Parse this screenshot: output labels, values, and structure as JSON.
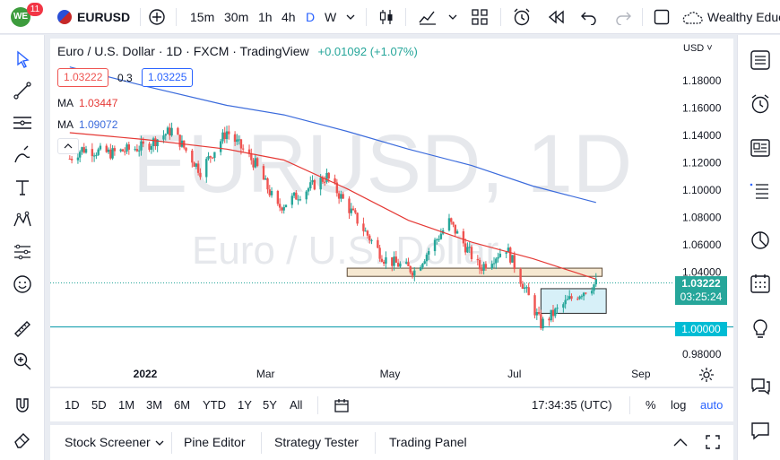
{
  "toolbar": {
    "badge_count": "11",
    "avatar_initials": "WE",
    "symbol": "EURUSD",
    "intervals": [
      "15m",
      "30m",
      "1h",
      "4h",
      "D",
      "W"
    ],
    "active_interval": "D",
    "account_label": "Wealthy Educ"
  },
  "legend": {
    "title": "Euro / U.S. Dollar · 1D · FXCM · TradingView",
    "change": "+0.01092 (+1.07%)",
    "bid": "1.03222",
    "spread": "0.3",
    "ask": "1.03225",
    "ma1_label": "MA",
    "ma1_value": "1.03447",
    "ma2_label": "MA",
    "ma2_value": "1.09072"
  },
  "watermark": {
    "big": "EURUSD, 1D",
    "small": "Euro / U.S. Dollar"
  },
  "price_axis": {
    "currency": "USD",
    "last_price": "1.03222",
    "countdown": "03:25:24",
    "level_label": "1.00000"
  },
  "colors": {
    "up": "#26a69a",
    "down": "#ef5350",
    "ma_fast": "#e53935",
    "ma_slow": "#3b6bdc",
    "support_line": "#0097a7",
    "resistance_zone": "#f5e4c9",
    "range_box": "#d3eef7"
  },
  "timeframes": {
    "ranges": [
      "1D",
      "5D",
      "1M",
      "3M",
      "6M",
      "YTD",
      "1Y",
      "5Y",
      "All"
    ],
    "clock": "17:34:35 (UTC)",
    "percent": "%",
    "log": "log",
    "auto": "auto"
  },
  "bottom": {
    "tabs": [
      "Stock Screener",
      "Pine Editor",
      "Strategy Tester",
      "Trading Panel"
    ]
  },
  "chart_data": {
    "type": "candlestick",
    "title": "Euro / U.S. Dollar · 1D · FXCM",
    "x_ticks": [
      "2022",
      "Mar",
      "May",
      "Jul",
      "Sep"
    ],
    "y_ticks": [
      "1.18000",
      "1.16000",
      "1.14000",
      "1.12000",
      "1.10000",
      "1.08000",
      "1.06000",
      "1.04000",
      "1.02000",
      "1.00000",
      "0.98000"
    ],
    "ylim": [
      0.973,
      1.195
    ],
    "anchors": [
      {
        "date": "2021-11-25",
        "close": 1.123
      },
      {
        "date": "2021-12-01",
        "close": 1.13
      },
      {
        "date": "2021-12-15",
        "close": 1.127
      },
      {
        "date": "2022-01-01",
        "close": 1.132
      },
      {
        "date": "2022-01-14",
        "close": 1.144
      },
      {
        "date": "2022-01-28",
        "close": 1.114
      },
      {
        "date": "2022-02-10",
        "close": 1.143
      },
      {
        "date": "2022-02-24",
        "close": 1.119
      },
      {
        "date": "2022-03-07",
        "close": 1.087
      },
      {
        "date": "2022-03-31",
        "close": 1.11
      },
      {
        "date": "2022-04-28",
        "close": 1.05
      },
      {
        "date": "2022-05-13",
        "close": 1.041
      },
      {
        "date": "2022-05-30",
        "close": 1.077
      },
      {
        "date": "2022-06-14",
        "close": 1.043
      },
      {
        "date": "2022-06-27",
        "close": 1.058
      },
      {
        "date": "2022-07-14",
        "close": 1.002
      },
      {
        "date": "2022-07-28",
        "close": 1.02
      },
      {
        "date": "2022-08-10",
        "close": 1.032
      }
    ],
    "ma_fast": [
      {
        "date": "2021-11-25",
        "value": 1.142
      },
      {
        "date": "2022-01-01",
        "value": 1.137
      },
      {
        "date": "2022-02-10",
        "value": 1.13
      },
      {
        "date": "2022-03-10",
        "value": 1.122
      },
      {
        "date": "2022-04-10",
        "value": 1.101
      },
      {
        "date": "2022-05-10",
        "value": 1.078
      },
      {
        "date": "2022-06-10",
        "value": 1.062
      },
      {
        "date": "2022-07-10",
        "value": 1.05
      },
      {
        "date": "2022-08-10",
        "value": 1.035
      }
    ],
    "ma_slow": [
      {
        "date": "2021-11-25",
        "value": 1.19
      },
      {
        "date": "2022-01-01",
        "value": 1.176
      },
      {
        "date": "2022-02-10",
        "value": 1.162
      },
      {
        "date": "2022-03-10",
        "value": 1.155
      },
      {
        "date": "2022-04-10",
        "value": 1.143
      },
      {
        "date": "2022-05-10",
        "value": 1.13
      },
      {
        "date": "2022-06-10",
        "value": 1.118
      },
      {
        "date": "2022-07-10",
        "value": 1.103
      },
      {
        "date": "2022-08-10",
        "value": 1.091
      }
    ],
    "horizontal_line": 1.0,
    "resistance_zone": {
      "from": "2022-04-10",
      "to": "2022-08-13",
      "low": 1.037,
      "high": 1.043
    },
    "range_box": {
      "from": "2022-07-14",
      "to": "2022-08-15",
      "low": 1.01,
      "high": 1.028
    },
    "last_price": 1.03222
  }
}
